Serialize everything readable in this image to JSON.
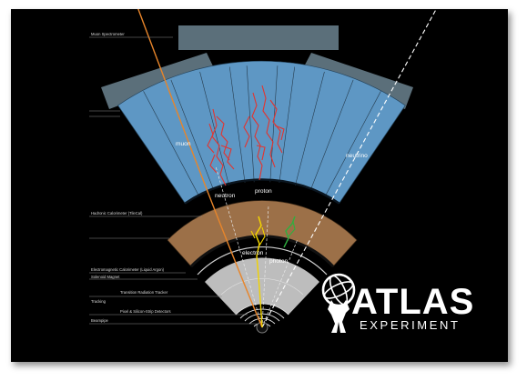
{
  "left_labels": {
    "muon_spectrometer": "Muon Spectrometer",
    "hadronic_calorimeter": "Hadronic Calorimeter (TileCal)",
    "em_calorimeter": "Electromagnetic Calorimeter (Liquid Argon)",
    "solenoid_magnet": "Solenoid Magnet",
    "trt": "Transition Radiation Tracker",
    "tracking": "Tracking",
    "pixel_detectors": "Pixel & Silicon-Strip Detectors",
    "beampipe": "Beampipe"
  },
  "particles": {
    "muon": "muon",
    "neutron": "neutron",
    "proton_hadronic": "proton",
    "neutrino": "neutrino",
    "electron": "electron",
    "photon": "photon"
  },
  "logo": {
    "title": "ATLAS",
    "subtitle": "EXPERIMENT"
  },
  "colors": {
    "background": "#000000",
    "muon_chambers": "#5b6f7a",
    "hadronic_calorimeter": "#5e97c4",
    "em_calorimeter": "#9c7048",
    "tracker": "#bdbdbd",
    "muon_track": "#e8852a",
    "electron_track": "#f1d300",
    "neutrino_track": "#ffffff"
  }
}
